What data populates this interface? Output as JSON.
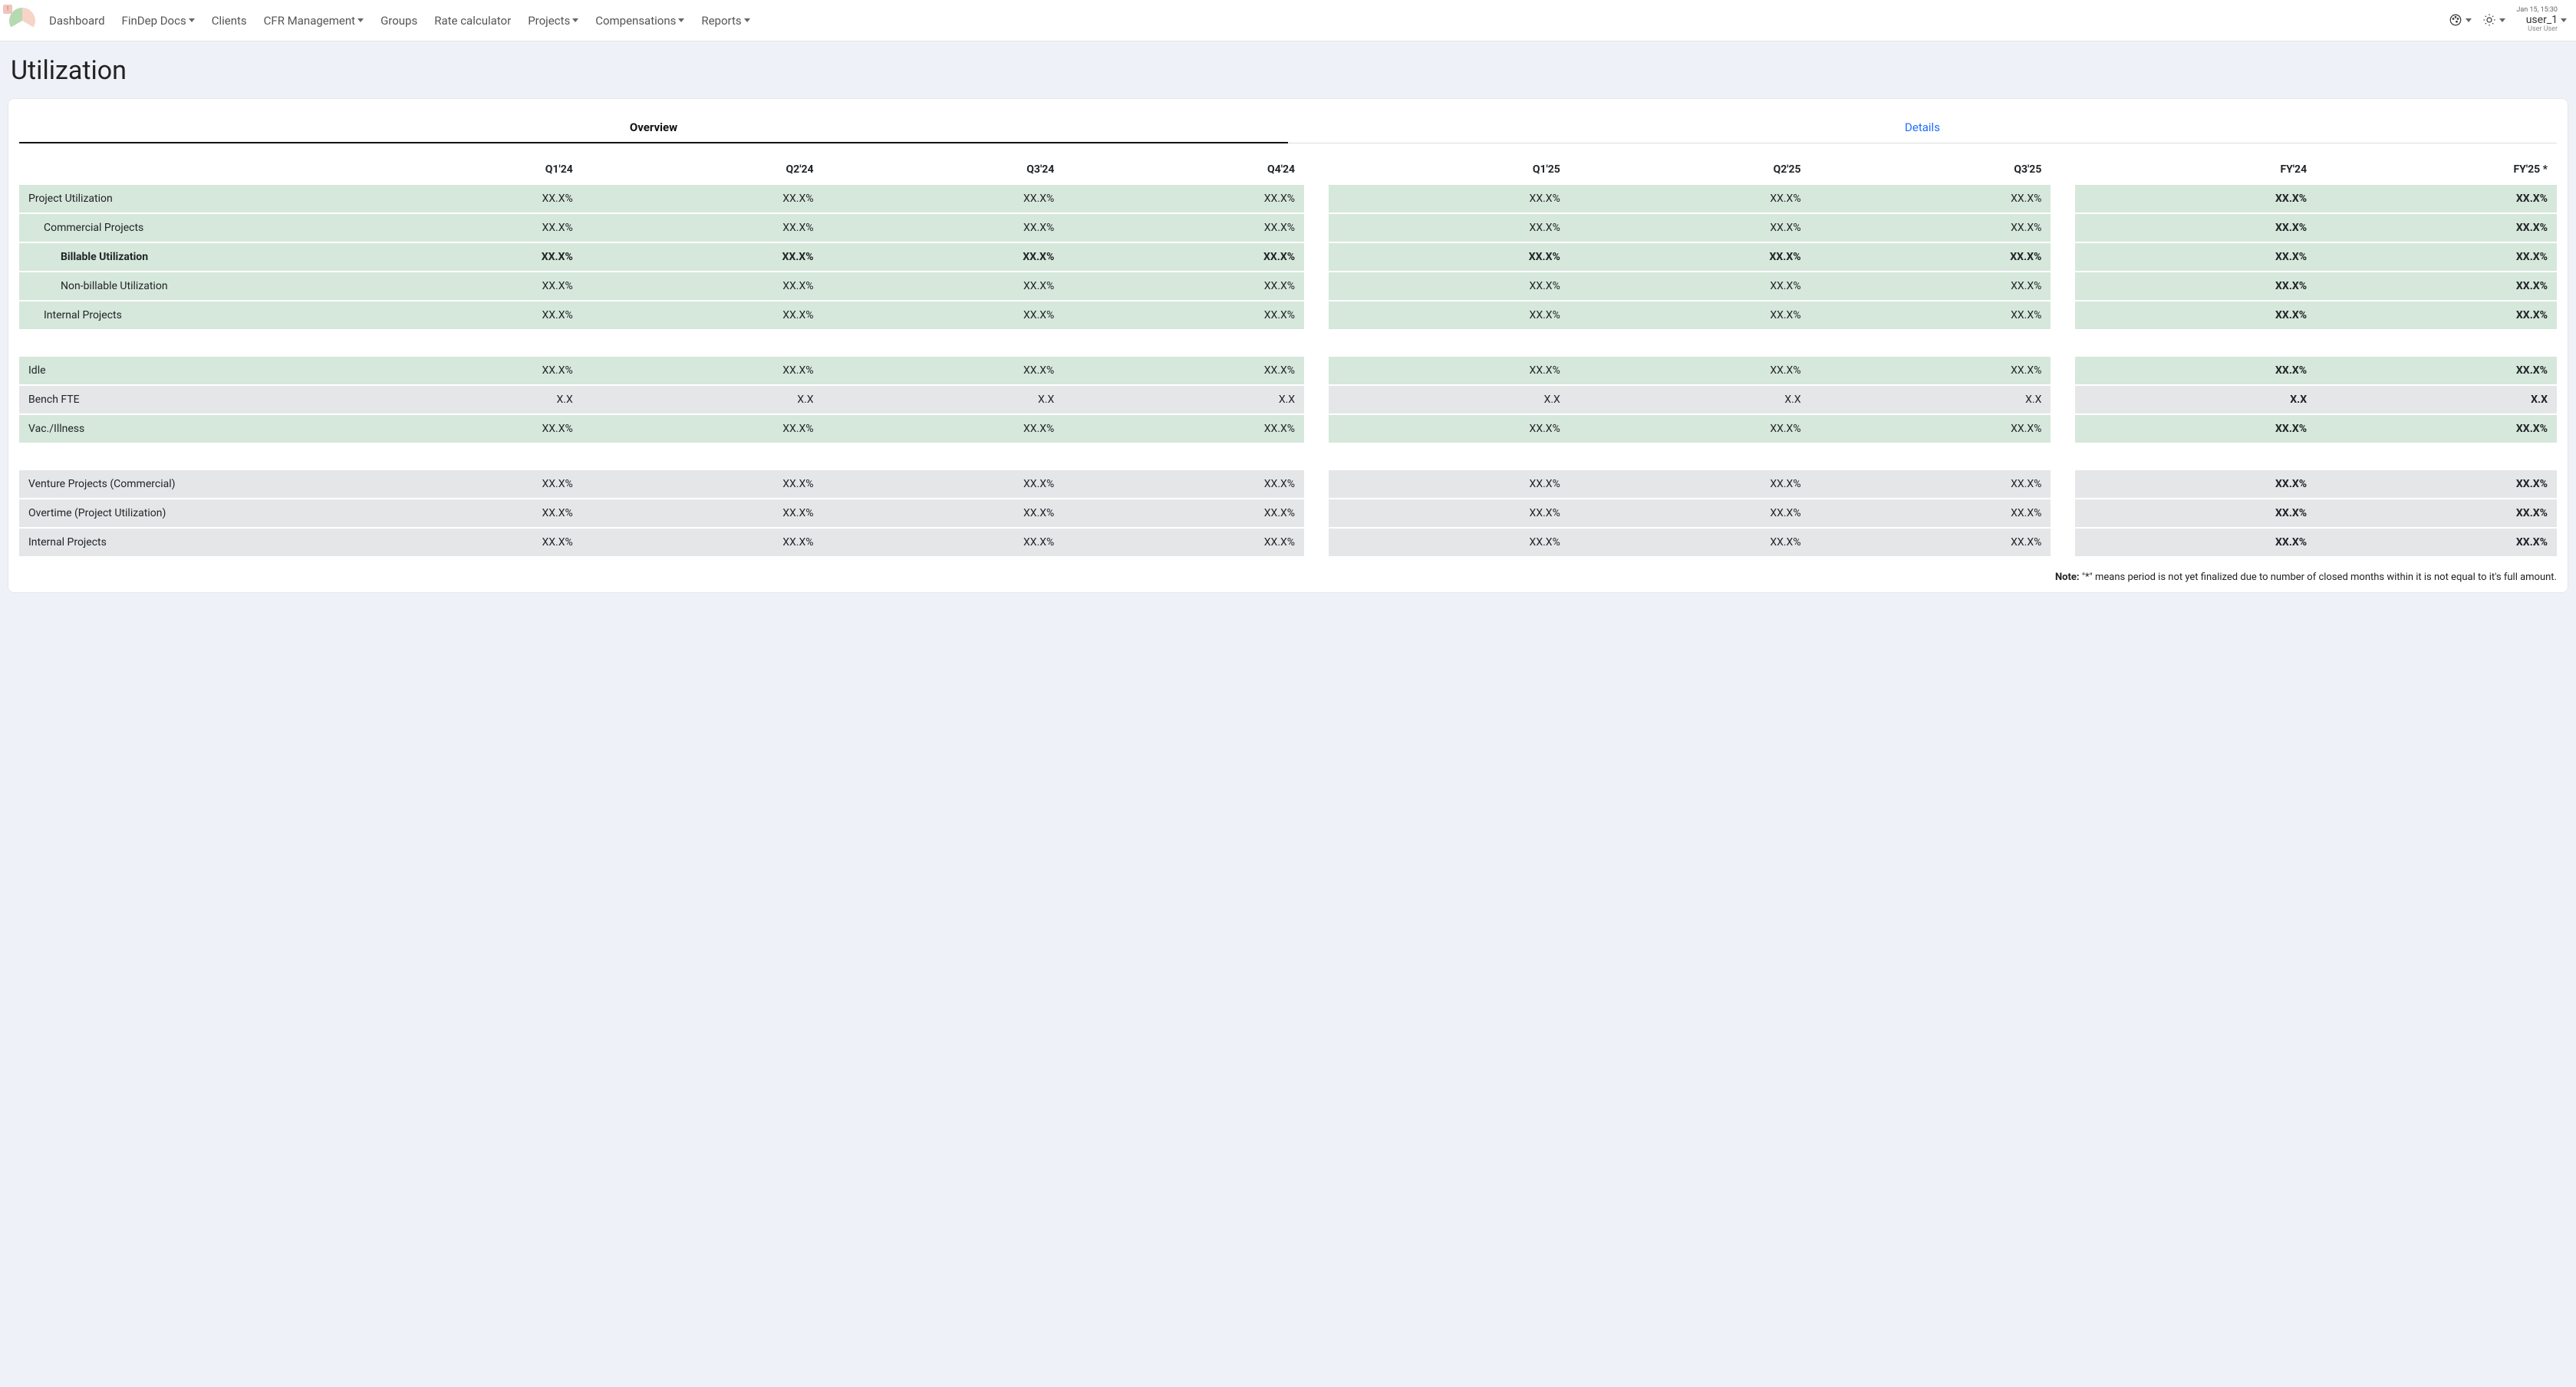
{
  "nav": {
    "items": [
      {
        "label": "Dashboard",
        "dropdown": false
      },
      {
        "label": "FinDep Docs",
        "dropdown": true
      },
      {
        "label": "Clients",
        "dropdown": false
      },
      {
        "label": "CFR Management",
        "dropdown": true
      },
      {
        "label": "Groups",
        "dropdown": false
      },
      {
        "label": "Rate calculator",
        "dropdown": false
      },
      {
        "label": "Projects",
        "dropdown": true
      },
      {
        "label": "Compensations",
        "dropdown": true
      },
      {
        "label": "Reports",
        "dropdown": true
      }
    ]
  },
  "user": {
    "timestamp": "Jan 15, 15:30",
    "name": "user_1",
    "subname": "User User"
  },
  "page": {
    "title": "Utilization"
  },
  "tabs": {
    "overview": "Overview",
    "details": "Details",
    "active": "overview"
  },
  "columns": {
    "g1": [
      "Q1'24",
      "Q2'24",
      "Q3'24",
      "Q4'24"
    ],
    "g2": [
      "Q1'25",
      "Q2'25",
      "Q3'25"
    ],
    "g3": [
      "FY'24",
      "FY'25 *"
    ]
  },
  "val_pct": "XX.X%",
  "val_num": "X.X",
  "rows": {
    "proj_util": {
      "label": "Project Utilization"
    },
    "commercial": {
      "label": "Commercial Projects"
    },
    "billable": {
      "label": "Billable Utilization"
    },
    "nonbillable": {
      "label": "Non-billable Utilization"
    },
    "internal": {
      "label": "Internal Projects"
    },
    "idle": {
      "label": "Idle"
    },
    "bench": {
      "label": "Bench FTE"
    },
    "vac": {
      "label": "Vac./Illness"
    },
    "venture": {
      "label": "Venture Projects (Commercial)"
    },
    "overtime": {
      "label": "Overtime (Project Utilization)"
    },
    "internal2": {
      "label": "Internal Projects"
    }
  },
  "footnote": {
    "prefix": "Note:",
    "text": " \"*\" means period is not yet finalized due to number of closed months within it is not equal to it's full amount."
  },
  "colors": {
    "row_green": "#d6e7db",
    "row_gray": "#e5e6e8",
    "link": "#1d6dff",
    "page_bg": "#eef1f8"
  }
}
